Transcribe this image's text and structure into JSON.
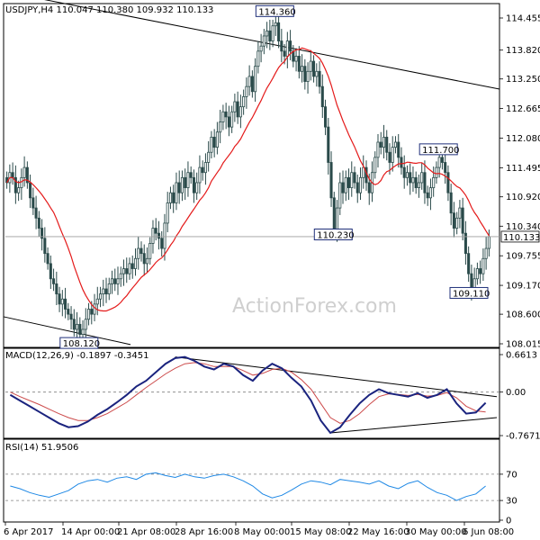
{
  "main_panel": {
    "header_label": "USDJPY,H4  110.047 110.380 109.932 110.133",
    "y_ticks": [
      "114.455",
      "113.820",
      "113.250",
      "112.665",
      "112.080",
      "111.495",
      "110.920",
      "110.340",
      "109.755",
      "109.170",
      "108.600",
      "108.015"
    ],
    "current_price": "110.133",
    "annotations": [
      "114.360",
      "111.700",
      "110.230",
      "109.110",
      "108.120"
    ],
    "watermark": "ActionForex.com"
  },
  "macd_panel": {
    "header_label": "MACD(12,26,9) -0.1897 -0.3451",
    "y_ticks": [
      "0.6613",
      "0.00",
      "-0.7671"
    ]
  },
  "rsi_panel": {
    "header_label": "RSI(14) 51.9506",
    "y_ticks": [
      "70",
      "30",
      "0"
    ]
  },
  "x_ticks": [
    "6 Apr 2017",
    "14 Apr 00:00",
    "21 Apr 08:00",
    "28 Apr 16:00",
    "8 May 00:00",
    "15 May 08:00",
    "22 May 16:00",
    "30 May 00:00",
    "6 Jun 08:00"
  ],
  "colors": {
    "candle": "#2a4a4a",
    "ma_line": "#e41a1a",
    "macd_line": "#1a237e",
    "signal_line": "#cc4a4a",
    "rsi_line": "#1e88e5",
    "trendline": "#000000",
    "label_box": "#1f2f7a"
  },
  "chart_data": [
    {
      "type": "candlestick",
      "title": "USDJPY,H4",
      "ylim": [
        108.015,
        114.455
      ],
      "ohlc_last": {
        "open": 110.047,
        "high": 110.38,
        "low": 109.932,
        "close": 110.133
      },
      "close": [
        111.2,
        111.4,
        111.3,
        111.0,
        111.1,
        111.3,
        111.5,
        111.2,
        110.9,
        110.7,
        110.5,
        110.3,
        110.1,
        109.8,
        109.6,
        109.3,
        109.2,
        109.0,
        108.8,
        108.9,
        108.7,
        108.6,
        108.5,
        108.3,
        108.4,
        108.2,
        108.3,
        108.5,
        108.7,
        108.6,
        108.8,
        108.9,
        109.0,
        109.1,
        109.0,
        109.2,
        109.3,
        109.2,
        109.3,
        109.4,
        109.5,
        109.4,
        109.6,
        109.5,
        109.7,
        109.9,
        109.8,
        109.6,
        109.7,
        110.0,
        110.3,
        110.2,
        110.1,
        109.9,
        110.4,
        110.8,
        111.0,
        110.8,
        111.2,
        111.0,
        111.3,
        111.1,
        111.4,
        111.3,
        111.0,
        111.2,
        111.5,
        111.4,
        111.6,
        111.8,
        112.1,
        111.9,
        112.2,
        112.4,
        112.6,
        112.5,
        112.3,
        112.6,
        112.8,
        112.5,
        112.7,
        112.9,
        113.1,
        113.3,
        113.0,
        113.5,
        113.8,
        113.9,
        114.1,
        114.2,
        114.0,
        114.3,
        114.36,
        114.0,
        113.8,
        113.7,
        114.0,
        113.8,
        113.6,
        113.7,
        113.4,
        113.5,
        113.2,
        113.4,
        113.6,
        113.3,
        113.4,
        113.1,
        112.7,
        112.3,
        111.6,
        110.9,
        110.23,
        110.7,
        111.2,
        111.0,
        111.3,
        111.1,
        111.4,
        111.2,
        111.0,
        111.3,
        111.5,
        111.2,
        111.0,
        111.4,
        111.7,
        112.0,
        111.9,
        112.1,
        111.8,
        111.6,
        111.9,
        112.0,
        111.7,
        111.5,
        111.3,
        111.4,
        111.2,
        111.3,
        111.1,
        111.2,
        111.4,
        111.0,
        110.9,
        111.1,
        111.3,
        111.5,
        111.7,
        111.6,
        111.4,
        111.0,
        110.6,
        110.3,
        110.5,
        110.7,
        110.2,
        109.8,
        109.4,
        109.11,
        109.3,
        109.5,
        109.4,
        109.7,
        109.9,
        110.133
      ],
      "ma_period": 50,
      "label_points": [
        {
          "label": "114.360",
          "value": 114.36
        },
        {
          "label": "111.700",
          "value": 111.7
        },
        {
          "label": "110.230",
          "value": 110.23
        },
        {
          "label": "109.110",
          "value": 109.11
        },
        {
          "label": "108.120",
          "value": 108.12
        }
      ]
    },
    {
      "type": "line",
      "title": "MACD(12,26,9)",
      "series": [
        {
          "name": "MACD",
          "values": [
            -0.05,
            -0.15,
            -0.25,
            -0.35,
            -0.45,
            -0.55,
            -0.62,
            -0.6,
            -0.52,
            -0.4,
            -0.3,
            -0.18,
            -0.05,
            0.1,
            0.2,
            0.35,
            0.5,
            0.6,
            0.62,
            0.55,
            0.45,
            0.4,
            0.5,
            0.45,
            0.3,
            0.2,
            0.38,
            0.5,
            0.42,
            0.25,
            0.1,
            -0.15,
            -0.5,
            -0.72,
            -0.62,
            -0.4,
            -0.2,
            -0.05,
            0.05,
            -0.02,
            -0.05,
            -0.08,
            -0.02,
            -0.1,
            -0.05,
            0.05,
            -0.2,
            -0.38,
            -0.36,
            -0.19
          ]
        },
        {
          "name": "Signal",
          "values": [
            0.0,
            -0.08,
            -0.15,
            -0.22,
            -0.3,
            -0.38,
            -0.45,
            -0.5,
            -0.5,
            -0.45,
            -0.38,
            -0.28,
            -0.18,
            -0.05,
            0.08,
            0.2,
            0.32,
            0.42,
            0.5,
            0.52,
            0.5,
            0.45,
            0.45,
            0.45,
            0.38,
            0.3,
            0.33,
            0.4,
            0.42,
            0.35,
            0.22,
            0.05,
            -0.2,
            -0.45,
            -0.55,
            -0.5,
            -0.38,
            -0.22,
            -0.08,
            -0.03,
            -0.04,
            -0.06,
            -0.04,
            -0.07,
            -0.06,
            -0.01,
            -0.1,
            -0.25,
            -0.33,
            -0.35
          ]
        }
      ],
      "ylim": [
        -0.7671,
        0.6613
      ]
    },
    {
      "type": "line",
      "title": "RSI(14)",
      "series": [
        {
          "name": "RSI",
          "values": [
            52,
            48,
            42,
            38,
            35,
            40,
            45,
            55,
            60,
            62,
            58,
            64,
            66,
            62,
            70,
            72,
            68,
            65,
            70,
            66,
            64,
            68,
            70,
            66,
            60,
            52,
            40,
            34,
            38,
            46,
            55,
            60,
            58,
            54,
            62,
            60,
            58,
            55,
            60,
            52,
            48,
            56,
            60,
            50,
            42,
            38,
            30,
            36,
            40,
            52
          ]
        }
      ],
      "ylim": [
        0,
        100
      ],
      "levels": [
        70,
        30
      ]
    }
  ]
}
